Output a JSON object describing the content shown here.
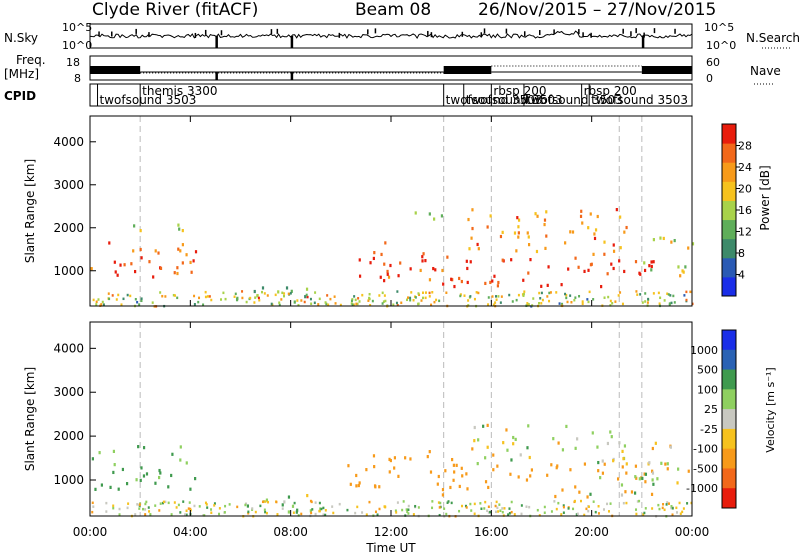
{
  "header": {
    "station": "Clyde River (fitACF)",
    "beam": "Beam 08",
    "daterange": "26/Nov/2015 – 27/Nov/2015"
  },
  "strips": {
    "nsky_label": "N.Sky",
    "nsky_ticks": [
      "10^5",
      "10^0"
    ],
    "nsky_right_ticks": [
      "10^5",
      "10^0"
    ],
    "nsearch_label": "N.Search",
    "freq_label_1": "Freq.",
    "freq_label_2": "[MHz]",
    "freq_ticks": [
      "18",
      "8"
    ],
    "nave_ticks": [
      "60",
      "0"
    ],
    "nave_label": "Nave",
    "cpid_label": "CPID",
    "cpid_entries": [
      {
        "label": "twofsound 3503",
        "row": 2,
        "t": 0.3
      },
      {
        "label": "themis 3300",
        "row": 1,
        "t": 2.0
      },
      {
        "label": "twofsound 3503",
        "row": 2,
        "t": 14.1
      },
      {
        "label": "twofsound 3503",
        "row": 2,
        "t": 14.9
      },
      {
        "label": "rbsp 200",
        "row": 1,
        "t": 16.0
      },
      {
        "label": "twofsound 3503",
        "row": 2,
        "t": 17.3
      },
      {
        "label": "rbsp 200",
        "row": 1,
        "t": 19.6
      },
      {
        "label": "twofsound 3503",
        "row": 2,
        "t": 19.9
      }
    ]
  },
  "power_panel": {
    "ylabel": "Slant Range [km]",
    "yticks": [
      "1000",
      "2000",
      "3000",
      "4000"
    ],
    "cbar_label": "Power [dB]",
    "cbar_ticks": [
      "4",
      "8",
      "12",
      "16",
      "20",
      "24",
      "28"
    ]
  },
  "velocity_panel": {
    "ylabel": "Slant Range [km]",
    "yticks": [
      "1000",
      "2000",
      "3000",
      "4000"
    ],
    "cbar_label": "Velocity [m s⁻¹]",
    "cbar_ticks": [
      "-1000",
      "-500",
      "-100",
      "-25",
      "25",
      "100",
      "500",
      "1000"
    ]
  },
  "xaxis": {
    "label": "Time UT",
    "ticks": [
      "00:00",
      "04:00",
      "08:00",
      "12:00",
      "16:00",
      "20:00",
      "00:00"
    ]
  },
  "colors": {
    "power_scale": [
      "#1a2ee8",
      "#2a5ab4",
      "#3d8a6a",
      "#5fae5a",
      "#a8d24a",
      "#f6c21e",
      "#f79a1a",
      "#f2681a",
      "#e81c0c"
    ],
    "velocity_scale": [
      "#e81c0c",
      "#f2681a",
      "#f79a1a",
      "#f6c21e",
      "#c8c8c0",
      "#8fd060",
      "#3f9a4e",
      "#2a62b4",
      "#1a2ee8"
    ]
  },
  "chart_data": [
    {
      "type": "heatmap",
      "title": "Power",
      "x_unit": "hours UT",
      "y_unit": "km",
      "xlim": [
        0,
        24
      ],
      "ylim": [
        180,
        4600
      ],
      "zlim": [
        0,
        30
      ],
      "scatter_regions": [
        {
          "t": [
            0.0,
            4.2
          ],
          "r": [
            800,
            1800
          ],
          "level": 0.85
        },
        {
          "t": [
            1.5,
            4.0
          ],
          "r": [
            1800,
            2100
          ],
          "level": 0.5
        },
        {
          "t": [
            5.8,
            9.2
          ],
          "r": [
            250,
            700
          ],
          "level": 0.35
        },
        {
          "t": [
            10.2,
            14.5
          ],
          "r": [
            800,
            1700
          ],
          "level": 0.9
        },
        {
          "t": [
            12.5,
            14.0
          ],
          "r": [
            2000,
            2400
          ],
          "level": 0.45
        },
        {
          "t": [
            14.0,
            22.5
          ],
          "r": [
            650,
            1400
          ],
          "level": 0.95
        },
        {
          "t": [
            15.0,
            21.5
          ],
          "r": [
            1400,
            2500
          ],
          "level": 0.75
        },
        {
          "t": [
            22.0,
            24.0
          ],
          "r": [
            900,
            1900
          ],
          "level": 0.55
        }
      ],
      "dashed_time_lines": [
        2.0,
        14.1,
        16.0,
        21.1,
        22.0
      ]
    },
    {
      "type": "heatmap",
      "title": "Velocity",
      "x_unit": "hours UT",
      "y_unit": "km",
      "xlim": [
        0,
        24
      ],
      "ylim": [
        180,
        4600
      ],
      "zlim": [
        -1000,
        1000
      ],
      "scatter_regions": [
        {
          "t": [
            0.0,
            4.2
          ],
          "r": [
            800,
            1800
          ],
          "v": 150
        },
        {
          "t": [
            5.8,
            9.2
          ],
          "r": [
            250,
            700
          ],
          "v": 50
        },
        {
          "t": [
            10.2,
            14.5
          ],
          "r": [
            800,
            1700
          ],
          "v": -300
        },
        {
          "t": [
            14.0,
            22.5
          ],
          "r": [
            650,
            1400
          ],
          "v": -250
        },
        {
          "t": [
            15.0,
            21.5
          ],
          "r": [
            1400,
            2300
          ],
          "v": 0
        },
        {
          "t": [
            19.5,
            22.5
          ],
          "r": [
            650,
            1200
          ],
          "v": 120
        },
        {
          "t": [
            22.0,
            24.0
          ],
          "r": [
            900,
            1900
          ],
          "v": -80
        }
      ],
      "dashed_time_lines": [
        2.0,
        14.1,
        16.0,
        21.1,
        22.0
      ]
    }
  ]
}
